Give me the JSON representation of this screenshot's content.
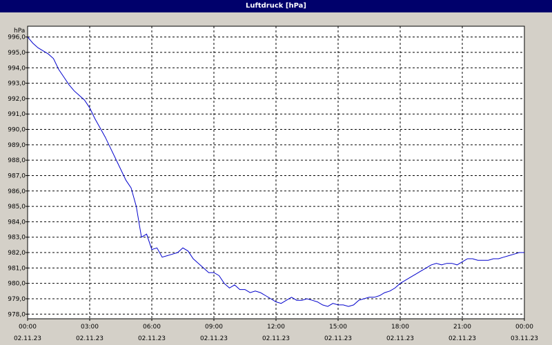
{
  "window": {
    "title": "Luftdruck [hPa]"
  },
  "colors": {
    "background": "#d4d0c8",
    "plot_area": "#ffffff",
    "title_bar": "#00006b",
    "series": "#0000cc",
    "grid": "#000000"
  },
  "chart_data": {
    "type": "line",
    "title": "Luftdruck [hPa]",
    "ylabel": "hPa",
    "xlabel": "",
    "grid": true,
    "ylim": [
      977.7,
      996.7
    ],
    "xlim": [
      0,
      24
    ],
    "y_ticks": [
      "978,0",
      "979,0",
      "980,0",
      "981,0",
      "982,0",
      "983,0",
      "984,0",
      "985,0",
      "986,0",
      "987,0",
      "988,0",
      "989,0",
      "990,0",
      "991,0",
      "992,0",
      "993,0",
      "994,0",
      "995,0",
      "996,0"
    ],
    "x_ticks": [
      {
        "time": "00:00",
        "date": "02.11.23"
      },
      {
        "time": "03:00",
        "date": "02.11.23"
      },
      {
        "time": "06:00",
        "date": "02.11.23"
      },
      {
        "time": "09:00",
        "date": "02.11.23"
      },
      {
        "time": "12:00",
        "date": "02.11.23"
      },
      {
        "time": "15:00",
        "date": "02.11.23"
      },
      {
        "time": "18:00",
        "date": "02.11.23"
      },
      {
        "time": "21:00",
        "date": "02.11.23"
      },
      {
        "time": "00:00",
        "date": "03.11.23"
      }
    ],
    "series": [
      {
        "x": [
          0.0,
          0.25,
          0.5,
          0.75,
          1.0,
          1.25,
          1.5,
          1.75,
          2.0,
          2.25,
          2.5,
          2.75,
          3.0,
          3.25,
          3.5,
          3.75,
          4.0,
          4.25,
          4.5,
          4.75,
          5.0,
          5.25,
          5.5,
          5.75,
          6.0,
          6.25,
          6.5,
          6.75,
          7.0,
          7.25,
          7.5,
          7.75,
          8.0,
          8.25,
          8.5,
          8.75,
          9.0,
          9.25,
          9.5,
          9.75,
          10.0,
          10.25,
          10.5,
          10.75,
          11.0,
          11.25,
          11.5,
          11.75,
          12.0,
          12.25,
          12.5,
          12.75,
          13.0,
          13.25,
          13.5,
          13.75,
          14.0,
          14.25,
          14.5,
          14.75,
          15.0,
          15.25,
          15.5,
          15.75,
          16.0,
          16.25,
          16.5,
          16.75,
          17.0,
          17.25,
          17.5,
          17.75,
          18.0,
          18.25,
          18.5,
          18.75,
          19.0,
          19.25,
          19.5,
          19.75,
          20.0,
          20.25,
          20.5,
          20.75,
          21.0,
          21.25,
          21.5,
          21.75,
          22.0,
          22.25,
          22.5,
          22.75,
          23.0,
          23.25,
          23.5,
          23.75,
          24.0
        ],
        "y": [
          996.0,
          995.6,
          995.3,
          995.1,
          994.9,
          994.6,
          993.9,
          993.4,
          992.9,
          992.5,
          992.2,
          991.9,
          991.4,
          990.7,
          990.1,
          989.5,
          988.8,
          988.1,
          987.4,
          986.7,
          986.2,
          985.0,
          983.0,
          983.2,
          982.2,
          982.3,
          981.7,
          981.8,
          981.9,
          982.0,
          982.3,
          982.1,
          981.6,
          981.3,
          981.0,
          980.7,
          980.7,
          980.5,
          980.0,
          979.7,
          979.9,
          979.6,
          979.6,
          979.4,
          979.5,
          979.4,
          979.2,
          979.0,
          978.8,
          978.7,
          978.9,
          979.1,
          978.9,
          978.9,
          979.0,
          978.9,
          978.8,
          978.6,
          978.5,
          978.7,
          978.6,
          978.6,
          978.5,
          978.6,
          978.9,
          979.0,
          979.1,
          979.1,
          979.2,
          979.4,
          979.5,
          979.7,
          980.0,
          980.2,
          980.4,
          980.6,
          980.8,
          981.0,
          981.2,
          981.3,
          981.2,
          981.3,
          981.3,
          981.2,
          981.4,
          981.6,
          981.6,
          981.5,
          981.5,
          981.5,
          981.6,
          981.6,
          981.7,
          981.8,
          981.9,
          982.0,
          982.0
        ]
      }
    ]
  }
}
